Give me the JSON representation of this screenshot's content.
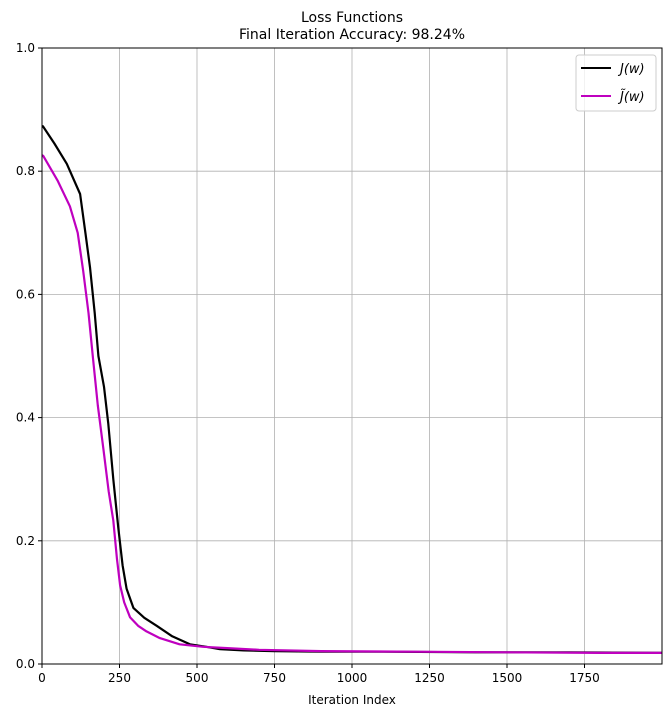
{
  "chart_data": {
    "type": "line",
    "title": "Loss Functions",
    "subtitle": "Final Iteration Accuracy: 98.24%",
    "xlabel": "Iteration Index",
    "ylabel": "",
    "xlim": [
      0,
      2000
    ],
    "ylim": [
      0,
      1.0
    ],
    "xticks": [
      0,
      250,
      500,
      750,
      1000,
      1250,
      1500,
      1750
    ],
    "xtick_labels": [
      "0",
      "250",
      "500",
      "750",
      "1000",
      "1250",
      "1500",
      "1750"
    ],
    "yticks": [
      0,
      0.2,
      0.4,
      0.6,
      0.8,
      1.0
    ],
    "ytick_labels": [
      "0.0",
      "0.2",
      "0.4",
      "0.6",
      "0.8",
      "1.0"
    ],
    "grid": true,
    "legend_position": "top-right",
    "series": [
      {
        "name": "J(w)",
        "color": "#000000",
        "x": [
          0,
          3,
          40,
          80,
          123,
          140,
          155,
          170,
          182,
          200,
          214,
          230,
          246,
          260,
          273,
          295,
          330,
          370,
          420,
          477,
          530,
          574,
          650,
          750,
          900,
          1100,
          1400,
          1700,
          1999
        ],
        "y": [
          0.873,
          0.873,
          0.845,
          0.812,
          0.763,
          0.7,
          0.644,
          0.57,
          0.5,
          0.45,
          0.39,
          0.3,
          0.221,
          0.16,
          0.122,
          0.091,
          0.075,
          0.062,
          0.045,
          0.032,
          0.028,
          0.024,
          0.022,
          0.021,
          0.02,
          0.02,
          0.019,
          0.019,
          0.018
        ]
      },
      {
        "name": "J̃(w)",
        "color": "#bf00bf",
        "x": [
          0,
          4,
          50,
          90,
          115,
          133,
          150,
          165,
          180,
          198,
          215,
          230,
          242,
          252,
          265,
          284,
          310,
          337,
          380,
          444,
          520,
          590,
          700,
          900,
          1200,
          1500,
          1800,
          1999
        ],
        "y": [
          0.826,
          0.825,
          0.785,
          0.743,
          0.7,
          0.638,
          0.57,
          0.493,
          0.42,
          0.349,
          0.28,
          0.233,
          0.17,
          0.128,
          0.1,
          0.076,
          0.062,
          0.053,
          0.042,
          0.032,
          0.028,
          0.026,
          0.023,
          0.021,
          0.02,
          0.019,
          0.018,
          0.018
        ]
      }
    ]
  }
}
